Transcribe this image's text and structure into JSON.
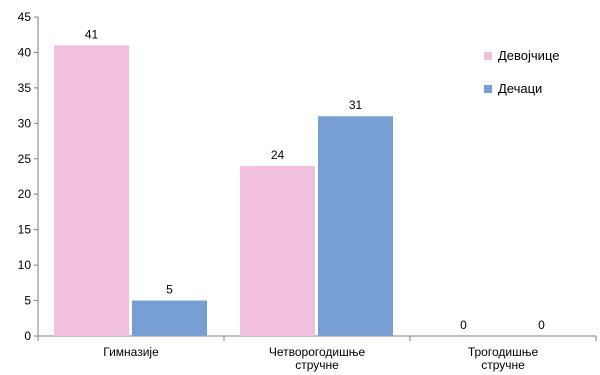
{
  "chart_data": {
    "type": "bar",
    "categories": [
      [
        "Гимназије"
      ],
      [
        "Четворогодишње",
        "стручне"
      ],
      [
        "Трогодишње",
        "стручне"
      ]
    ],
    "series": [
      {
        "name": "Девојчице",
        "values": [
          41,
          24,
          0
        ],
        "color": "#F0C0DE"
      },
      {
        "name": "Дечаци",
        "values": [
          5,
          31,
          0
        ],
        "color": "#789FD3"
      }
    ],
    "ylim": [
      0,
      45
    ],
    "yticks": [
      0,
      5,
      10,
      15,
      20,
      25,
      30,
      35,
      40,
      45
    ],
    "grid": false,
    "legend_position": "right",
    "title": "",
    "xlabel": "",
    "ylabel": ""
  }
}
